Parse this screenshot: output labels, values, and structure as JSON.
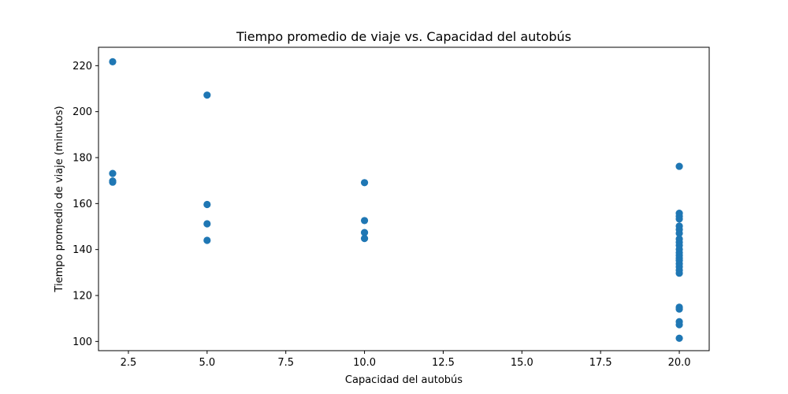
{
  "chart_data": {
    "type": "scatter",
    "title": "Tiempo promedio de viaje vs. Capacidad del autobús",
    "xlabel": "Capacidad del autobús",
    "ylabel": "Tiempo promedio de viaje (minutos)",
    "xlim": [
      1.55,
      20.95
    ],
    "ylim": [
      96,
      228
    ],
    "xticks": [
      "2.5",
      "5.0",
      "7.5",
      "10.0",
      "12.5",
      "15.0",
      "17.5",
      "20.0"
    ],
    "yticks": [
      "100",
      "120",
      "140",
      "160",
      "180",
      "200",
      "220"
    ],
    "grid": false,
    "color": "#1f77b4",
    "series": [
      {
        "points": [
          {
            "x": 2,
            "y": 221.7
          },
          {
            "x": 2,
            "y": 173.1
          },
          {
            "x": 2,
            "y": 169.8
          },
          {
            "x": 2,
            "y": 169.3
          },
          {
            "x": 5,
            "y": 207.2
          },
          {
            "x": 5,
            "y": 159.6
          },
          {
            "x": 5,
            "y": 151.2
          },
          {
            "x": 5,
            "y": 144.0
          },
          {
            "x": 10,
            "y": 169.1
          },
          {
            "x": 10,
            "y": 152.6
          },
          {
            "x": 10,
            "y": 147.4
          },
          {
            "x": 10,
            "y": 144.8
          },
          {
            "x": 20,
            "y": 176.2
          },
          {
            "x": 20,
            "y": 155.8
          },
          {
            "x": 20,
            "y": 154.5
          },
          {
            "x": 20,
            "y": 153.3
          },
          {
            "x": 20,
            "y": 150.2
          },
          {
            "x": 20,
            "y": 148.7
          },
          {
            "x": 20,
            "y": 147.1
          },
          {
            "x": 20,
            "y": 144.6
          },
          {
            "x": 20,
            "y": 143.2
          },
          {
            "x": 20,
            "y": 141.8
          },
          {
            "x": 20,
            "y": 140.1
          },
          {
            "x": 20,
            "y": 138.7
          },
          {
            "x": 20,
            "y": 137.5
          },
          {
            "x": 20,
            "y": 136.3
          },
          {
            "x": 20,
            "y": 135.2
          },
          {
            "x": 20,
            "y": 133.8
          },
          {
            "x": 20,
            "y": 132.5
          },
          {
            "x": 20,
            "y": 131.0
          },
          {
            "x": 20,
            "y": 129.7
          },
          {
            "x": 20,
            "y": 114.9
          },
          {
            "x": 20,
            "y": 114.1
          },
          {
            "x": 20,
            "y": 108.6
          },
          {
            "x": 20,
            "y": 107.3
          },
          {
            "x": 20,
            "y": 101.4
          }
        ]
      }
    ]
  }
}
